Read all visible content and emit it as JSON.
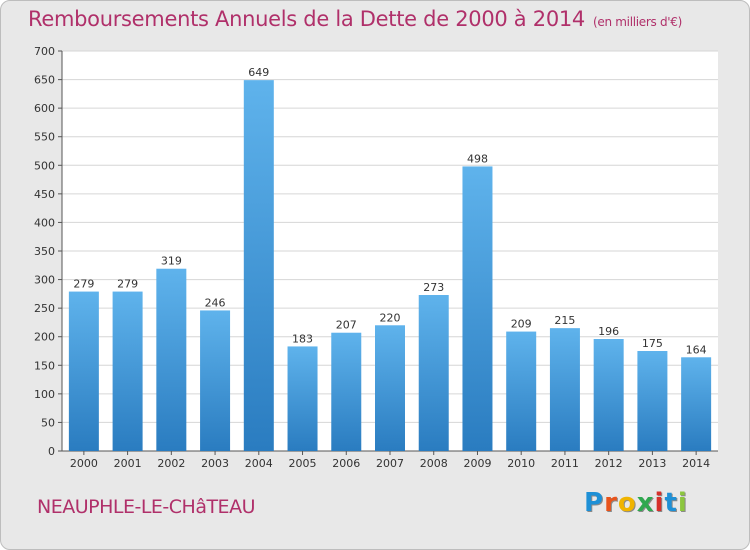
{
  "title": "Remboursements Annuels de la Dette de 2000 à 2014",
  "subtitle": "(en milliers d'€)",
  "place": "NEAUPHLE-LE-CHâTEAU",
  "logo": {
    "letters": [
      "P",
      "r",
      "o",
      "x",
      "i",
      "t",
      "i"
    ],
    "colors": [
      "#1e90d6",
      "#e8541c",
      "#f0b400",
      "#2fa84f",
      "#d6302b",
      "#1e90d6",
      "#8cc63e"
    ]
  },
  "colors": {
    "bar": "#3a97d9",
    "bar_light": "#5fb3ec",
    "bar_dark": "#2a7cc0",
    "title": "#b0306a",
    "plot_bg": "#ffffff"
  },
  "chart_data": {
    "type": "bar",
    "categories": [
      "2000",
      "2001",
      "2002",
      "2003",
      "2004",
      "2005",
      "2006",
      "2007",
      "2008",
      "2009",
      "2010",
      "2011",
      "2012",
      "2013",
      "2014"
    ],
    "values": [
      279,
      279,
      319,
      246,
      649,
      183,
      207,
      220,
      273,
      498,
      209,
      215,
      196,
      175,
      164
    ],
    "ylim": [
      0,
      700
    ],
    "yticks": [
      0,
      50,
      100,
      150,
      200,
      250,
      300,
      350,
      400,
      450,
      500,
      550,
      600,
      650,
      700
    ],
    "grid": true,
    "data_labels": true
  }
}
